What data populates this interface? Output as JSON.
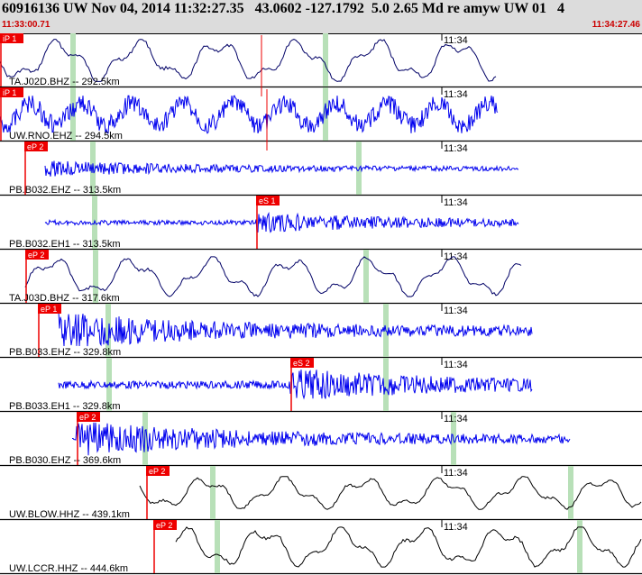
{
  "header": {
    "title": "60916136 UW Nov 04, 2014 11:32:27.35   43.0602 -127.1792  5.0 2.65 Md re amyw UW 01   4",
    "start_time": "11:33:00.71",
    "end_time": "11:34:27.46"
  },
  "colors": {
    "header_bg": "#dcdcdc",
    "time_text": "#cc0000",
    "pick": "#ee0000",
    "window_band": "#b8e0b8",
    "trace_blue": "#0000ee",
    "trace_black": "#000000",
    "trace_navy": "#000066"
  },
  "tick_label": "11:34",
  "traces": [
    {
      "label": "TA.J02D.BHZ -- 292.5km",
      "pick": "iP 1",
      "color": "navy",
      "style": "long",
      "amp": 0.9
    },
    {
      "label": "UW.RNO.EHZ -- 294.5km",
      "pick": "iP 1",
      "color": "blue",
      "style": "mixed",
      "amp": 0.8
    },
    {
      "label": "PB.B032.EHZ -- 313.5km",
      "pick": "eP 2",
      "color": "blue",
      "style": "hf",
      "amp": 0.35
    },
    {
      "label": "PB.B032.EH1 -- 313.5km",
      "pick": "eS 1",
      "color": "blue",
      "style": "hf",
      "amp": 0.4
    },
    {
      "label": "TA.J03D.BHZ -- 317.6km",
      "pick": "eP 2",
      "color": "navy",
      "style": "long",
      "amp": 0.85
    },
    {
      "label": "PB.B033.EHZ -- 329.8km",
      "pick": "eP 1",
      "color": "blue",
      "style": "hf",
      "amp": 0.8
    },
    {
      "label": "PB.B033.EH1 -- 329.8km",
      "pick": "eS 2",
      "color": "blue",
      "style": "hf",
      "amp": 0.65
    },
    {
      "label": "PB.B030.EHZ -- 369.6km",
      "pick": "eP 2",
      "color": "blue",
      "style": "hf",
      "amp": 0.7
    },
    {
      "label": "UW.BLOW.HHZ -- 439.1km",
      "pick": "eP 2",
      "color": "black",
      "style": "long",
      "amp": 0.7
    },
    {
      "label": "UW.LCCR.HHZ -- 444.6km",
      "pick": "eP 2",
      "color": "black",
      "style": "long",
      "amp": 0.85
    }
  ]
}
